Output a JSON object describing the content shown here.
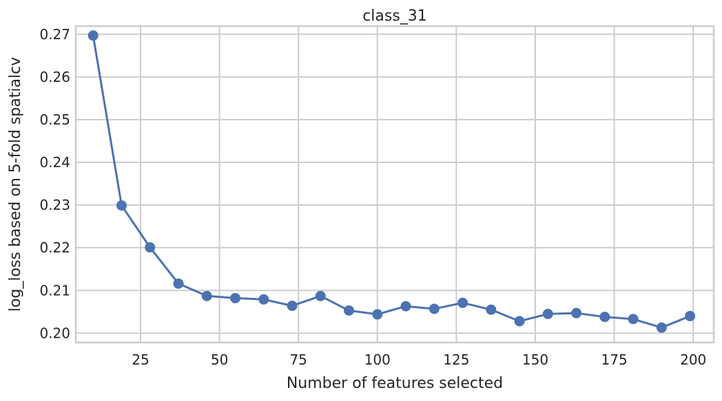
{
  "chart_data": {
    "type": "line",
    "title": "class_31",
    "xlabel": "Number of features selected",
    "ylabel": "log_loss based on 5-fold spatialcv",
    "xlim": [
      4.5,
      206.5
    ],
    "ylim": [
      0.1978,
      0.2719
    ],
    "xticks": [
      25,
      50,
      75,
      100,
      125,
      150,
      175,
      200
    ],
    "yticks": [
      0.2,
      0.21,
      0.22,
      0.23,
      0.24,
      0.25,
      0.26,
      0.27
    ],
    "ytick_labels": [
      "0.20",
      "0.21",
      "0.22",
      "0.23",
      "0.24",
      "0.25",
      "0.26",
      "0.27"
    ],
    "grid": true,
    "series": [
      {
        "color": "#4c72b0",
        "marker": "circle",
        "x": [
          10,
          19,
          28,
          37,
          46,
          55,
          64,
          73,
          82,
          91,
          100,
          109,
          118,
          127,
          136,
          145,
          154,
          163,
          172,
          181,
          190,
          199
        ],
        "y": [
          0.2697,
          0.2299,
          0.2201,
          0.2116,
          0.2087,
          0.2082,
          0.2079,
          0.2064,
          0.2087,
          0.2053,
          0.2044,
          0.2063,
          0.2057,
          0.2071,
          0.2055,
          0.2028,
          0.2045,
          0.2047,
          0.2038,
          0.2033,
          0.2013,
          0.204
        ]
      }
    ]
  }
}
